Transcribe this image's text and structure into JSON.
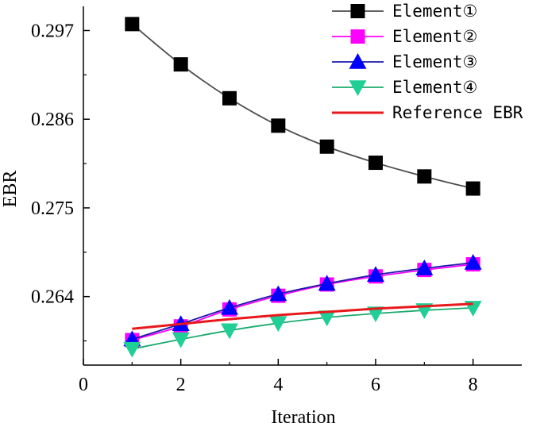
{
  "chart_data": {
    "type": "line",
    "title": "",
    "xlabel": "Iteration",
    "ylabel": "EBR",
    "xlim": [
      0,
      9
    ],
    "ylim": [
      0.2555,
      0.3
    ],
    "xticks": [
      0,
      2,
      4,
      6,
      8
    ],
    "xtick_labels": [
      "0",
      "2",
      "4",
      "6",
      "8"
    ],
    "yticks": [
      0.264,
      0.275,
      0.286,
      0.297
    ],
    "ytick_labels": [
      "0.264",
      "0.275",
      "0.286",
      "0.297"
    ],
    "legend_position": "top-right",
    "series": [
      {
        "name": "Element①",
        "marker": "square",
        "line_color": "#4d4d4d",
        "marker_color": "#000000",
        "x": [
          1,
          2,
          3,
          4,
          5,
          6,
          7,
          8
        ],
        "y": [
          0.2978,
          0.2928,
          0.2886,
          0.2852,
          0.2826,
          0.2806,
          0.2789,
          0.2774
        ]
      },
      {
        "name": "Element②",
        "marker": "square",
        "line_color": "#ff00ff",
        "marker_color": "#ff00ff",
        "x": [
          1,
          2,
          3,
          4,
          5,
          6,
          7,
          8
        ],
        "y": [
          0.2586,
          0.2603,
          0.2624,
          0.2641,
          0.2655,
          0.2665,
          0.2673,
          0.268
        ]
      },
      {
        "name": "Element③",
        "marker": "triangle-up",
        "line_color": "#1a1aaa",
        "marker_color": "#0000ff",
        "x": [
          1,
          2,
          3,
          4,
          5,
          6,
          7,
          8
        ],
        "y": [
          0.2587,
          0.2606,
          0.2626,
          0.2643,
          0.2656,
          0.2667,
          0.2675,
          0.2682
        ]
      },
      {
        "name": "Element④",
        "marker": "triangle-down",
        "line_color": "#1aab6d",
        "marker_color": "#1fcf95",
        "x": [
          1,
          2,
          3,
          4,
          5,
          6,
          7,
          8
        ],
        "y": [
          0.2575,
          0.2587,
          0.2598,
          0.2607,
          0.2614,
          0.2619,
          0.2623,
          0.2626
        ]
      },
      {
        "name": "Reference EBR",
        "marker": "none",
        "line_color": "#e8191c",
        "marker_color": "#e8191c",
        "x": [
          1,
          2,
          3,
          4,
          5,
          6,
          7,
          8
        ],
        "y": [
          0.26,
          0.2606,
          0.2612,
          0.2617,
          0.2621,
          0.2625,
          0.2628,
          0.2631
        ]
      }
    ]
  }
}
